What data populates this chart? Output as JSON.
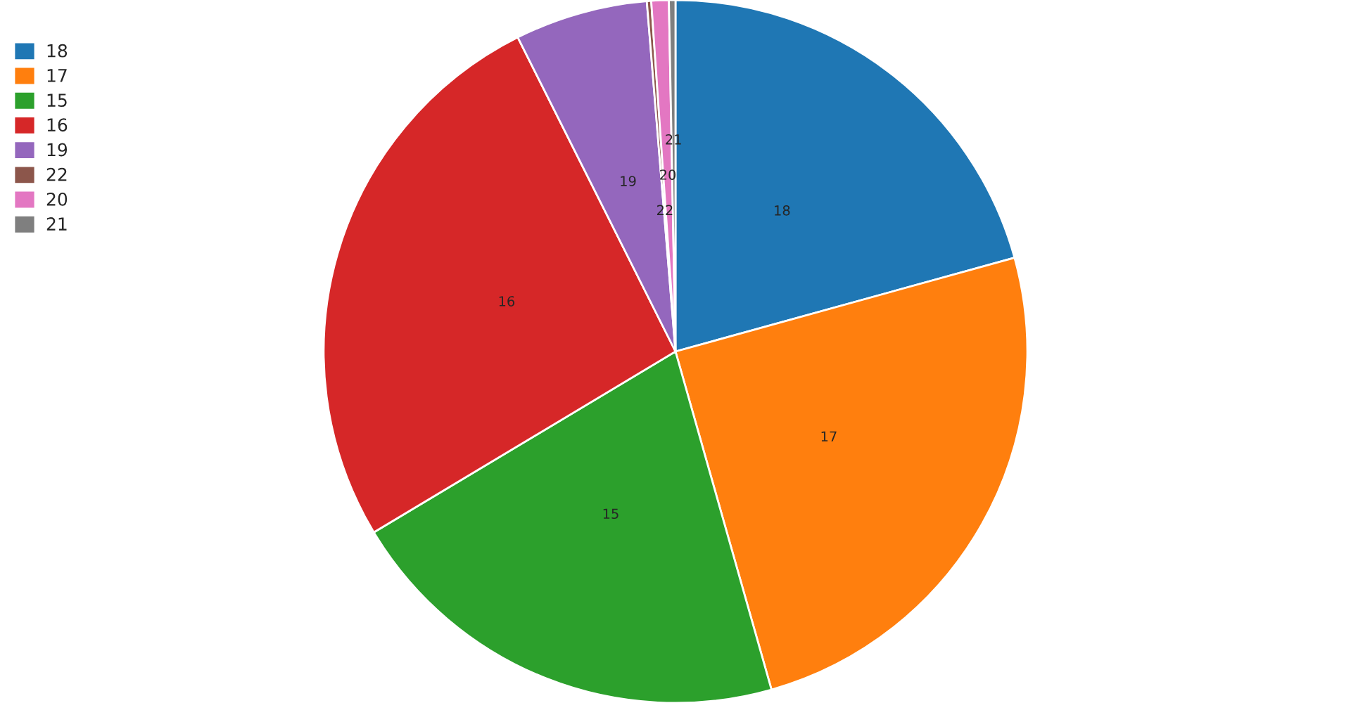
{
  "chart_data": {
    "type": "pie",
    "categories": [
      "18",
      "17",
      "15",
      "16",
      "19",
      "22",
      "20",
      "21"
    ],
    "values": [
      20.7,
      24.9,
      20.8,
      26.2,
      6.1,
      0.2,
      0.8,
      0.3
    ],
    "colors": [
      "#1f77b4",
      "#ff7f0e",
      "#2ca02c",
      "#d62728",
      "#9467bd",
      "#8c564b",
      "#e377c2",
      "#7f7f7f"
    ],
    "data_labels": false,
    "legend": "top left"
  }
}
